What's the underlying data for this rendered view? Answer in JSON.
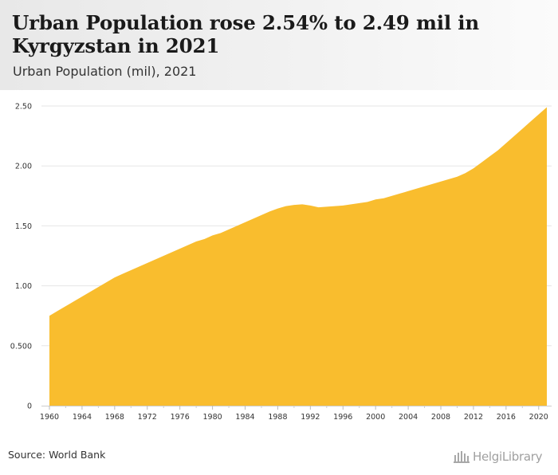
{
  "header": {
    "title": "Urban Population rose 2.54% to 2.49 mil in Kyrgyzstan in 2021",
    "subtitle": "Urban Population (mil), 2021"
  },
  "footer": {
    "source": "Source: World Bank",
    "logo_text": "HelgiLibrary"
  },
  "colors": {
    "area_fill": "#F9BD2E",
    "gridline": "#e6e6e6",
    "header_bg": "#ececec"
  },
  "chart_data": {
    "type": "area",
    "title": "Urban Population rose 2.54% to 2.49 mil in Kyrgyzstan in 2021",
    "subtitle": "Urban Population (mil), 2021",
    "xlabel": "",
    "ylabel": "",
    "xlim": [
      1960,
      2021
    ],
    "ylim": [
      0,
      2.5
    ],
    "grid": true,
    "legend": "none",
    "y_ticks": [
      0,
      0.5,
      1.0,
      1.5,
      2.0,
      2.5
    ],
    "y_tick_labels": [
      "0",
      "0.500",
      "1.00",
      "1.50",
      "2.00",
      "2.50"
    ],
    "x_ticks": [
      1960,
      1964,
      1968,
      1972,
      1976,
      1980,
      1984,
      1988,
      1992,
      1996,
      2000,
      2004,
      2008,
      2012,
      2016,
      2020
    ],
    "x_tick_labels": [
      "1960",
      "1964",
      "1968",
      "1972",
      "1976",
      "1980",
      "1984",
      "1988",
      "1992",
      "1996",
      "2000",
      "2004",
      "2008",
      "2012",
      "2016",
      "2020"
    ],
    "series": [
      {
        "name": "Urban Population (mil)",
        "x": [
          1960,
          1961,
          1962,
          1963,
          1964,
          1965,
          1966,
          1967,
          1968,
          1969,
          1970,
          1971,
          1972,
          1973,
          1974,
          1975,
          1976,
          1977,
          1978,
          1979,
          1980,
          1981,
          1982,
          1983,
          1984,
          1985,
          1986,
          1987,
          1988,
          1989,
          1990,
          1991,
          1992,
          1993,
          1994,
          1995,
          1996,
          1997,
          1998,
          1999,
          2000,
          2001,
          2002,
          2003,
          2004,
          2005,
          2006,
          2007,
          2008,
          2009,
          2010,
          2011,
          2012,
          2013,
          2014,
          2015,
          2016,
          2017,
          2018,
          2019,
          2020,
          2021
        ],
        "values": [
          0.75,
          0.79,
          0.83,
          0.87,
          0.91,
          0.95,
          0.99,
          1.03,
          1.07,
          1.1,
          1.13,
          1.16,
          1.19,
          1.22,
          1.25,
          1.28,
          1.31,
          1.34,
          1.37,
          1.39,
          1.42,
          1.44,
          1.47,
          1.5,
          1.53,
          1.56,
          1.59,
          1.62,
          1.645,
          1.665,
          1.675,
          1.68,
          1.67,
          1.655,
          1.66,
          1.665,
          1.67,
          1.68,
          1.69,
          1.7,
          1.72,
          1.73,
          1.75,
          1.77,
          1.79,
          1.81,
          1.83,
          1.85,
          1.87,
          1.89,
          1.91,
          1.94,
          1.98,
          2.03,
          2.08,
          2.13,
          2.19,
          2.25,
          2.31,
          2.37,
          2.43,
          2.49
        ]
      }
    ]
  }
}
